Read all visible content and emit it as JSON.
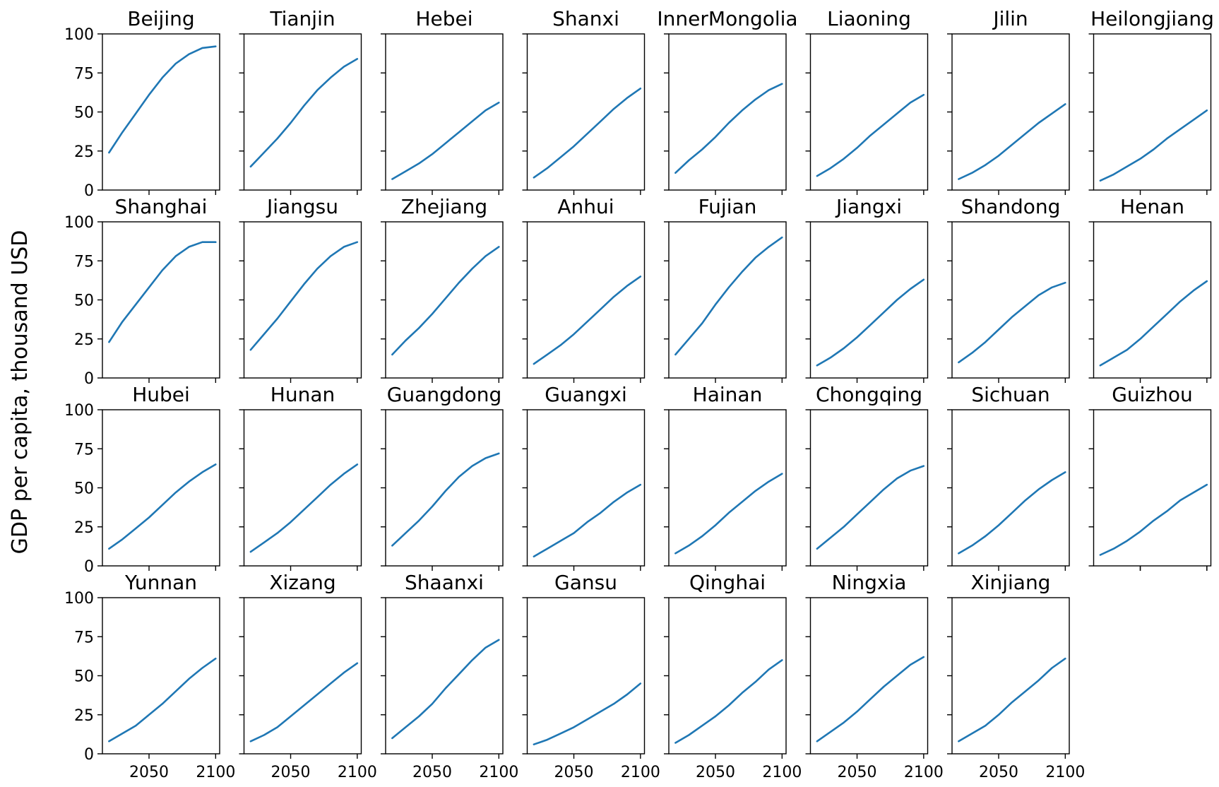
{
  "chart_data": {
    "type": "line",
    "ylabel": "GDP per capita, thousand USD",
    "xlabel": "",
    "xlim": [
      2015,
      2103
    ],
    "ylim": [
      0,
      100
    ],
    "xticks": [
      2050,
      2100
    ],
    "yticks": [
      0,
      25,
      50,
      75,
      100
    ],
    "grid": false,
    "layout": "4 rows x 8 columns small multiples, shared axes",
    "line_color": "#1f77b4",
    "x": [
      2020,
      2030,
      2040,
      2050,
      2060,
      2070,
      2080,
      2090,
      2100
    ],
    "panels": [
      {
        "name": "Beijing",
        "values": [
          24,
          37,
          49,
          61,
          72,
          81,
          87,
          91,
          92
        ]
      },
      {
        "name": "Tianjin",
        "values": [
          15,
          24,
          33,
          43,
          54,
          64,
          72,
          79,
          84
        ]
      },
      {
        "name": "Hebei",
        "values": [
          7,
          12,
          17,
          23,
          30,
          37,
          44,
          51,
          56
        ]
      },
      {
        "name": "Shanxi",
        "values": [
          8,
          14,
          21,
          28,
          36,
          44,
          52,
          59,
          65
        ]
      },
      {
        "name": "InnerMongolia",
        "values": [
          11,
          19,
          26,
          34,
          43,
          51,
          58,
          64,
          68
        ]
      },
      {
        "name": "Liaoning",
        "values": [
          9,
          14,
          20,
          27,
          35,
          42,
          49,
          56,
          61
        ]
      },
      {
        "name": "Jilin",
        "values": [
          7,
          11,
          16,
          22,
          29,
          36,
          43,
          49,
          55
        ]
      },
      {
        "name": "Heilongjiang",
        "values": [
          6,
          10,
          15,
          20,
          26,
          33,
          39,
          45,
          51
        ]
      },
      {
        "name": "Shanghai",
        "values": [
          23,
          36,
          47,
          58,
          69,
          78,
          84,
          87,
          87
        ]
      },
      {
        "name": "Jiangsu",
        "values": [
          18,
          28,
          38,
          49,
          60,
          70,
          78,
          84,
          87
        ]
      },
      {
        "name": "Zhejiang",
        "values": [
          15,
          24,
          32,
          41,
          51,
          61,
          70,
          78,
          84
        ]
      },
      {
        "name": "Anhui",
        "values": [
          9,
          15,
          21,
          28,
          36,
          44,
          52,
          59,
          65
        ]
      },
      {
        "name": "Fujian",
        "values": [
          15,
          25,
          35,
          47,
          58,
          68,
          77,
          84,
          90
        ]
      },
      {
        "name": "Jiangxi",
        "values": [
          8,
          13,
          19,
          26,
          34,
          42,
          50,
          57,
          63
        ]
      },
      {
        "name": "Shandong",
        "values": [
          10,
          16,
          23,
          31,
          39,
          46,
          53,
          58,
          61
        ]
      },
      {
        "name": "Henan",
        "values": [
          8,
          13,
          18,
          25,
          33,
          41,
          49,
          56,
          62
        ]
      },
      {
        "name": "Hubei",
        "values": [
          11,
          17,
          24,
          31,
          39,
          47,
          54,
          60,
          65
        ]
      },
      {
        "name": "Hunan",
        "values": [
          9,
          15,
          21,
          28,
          36,
          44,
          52,
          59,
          65
        ]
      },
      {
        "name": "Guangdong",
        "values": [
          13,
          21,
          29,
          38,
          48,
          57,
          64,
          69,
          72
        ]
      },
      {
        "name": "Guangxi",
        "values": [
          6,
          11,
          16,
          21,
          28,
          34,
          41,
          47,
          52
        ]
      },
      {
        "name": "Hainan",
        "values": [
          8,
          13,
          19,
          26,
          34,
          41,
          48,
          54,
          59
        ]
      },
      {
        "name": "Chongqing",
        "values": [
          11,
          18,
          25,
          33,
          41,
          49,
          56,
          61,
          64
        ]
      },
      {
        "name": "Sichuan",
        "values": [
          8,
          13,
          19,
          26,
          34,
          42,
          49,
          55,
          60
        ]
      },
      {
        "name": "Guizhou",
        "values": [
          7,
          11,
          16,
          22,
          29,
          35,
          42,
          47,
          52
        ]
      },
      {
        "name": "Yunnan",
        "values": [
          8,
          13,
          18,
          25,
          32,
          40,
          48,
          55,
          61
        ]
      },
      {
        "name": "Xizang",
        "values": [
          8,
          12,
          17,
          24,
          31,
          38,
          45,
          52,
          58
        ]
      },
      {
        "name": "Shaanxi",
        "values": [
          10,
          17,
          24,
          32,
          42,
          51,
          60,
          68,
          73
        ]
      },
      {
        "name": "Gansu",
        "values": [
          6,
          9,
          13,
          17,
          22,
          27,
          32,
          38,
          45
        ]
      },
      {
        "name": "Qinghai",
        "values": [
          7,
          12,
          18,
          24,
          31,
          39,
          46,
          54,
          60
        ]
      },
      {
        "name": "Ningxia",
        "values": [
          8,
          14,
          20,
          27,
          35,
          43,
          50,
          57,
          62
        ]
      },
      {
        "name": "Xinjiang",
        "values": [
          8,
          13,
          18,
          25,
          33,
          40,
          47,
          55,
          61
        ]
      }
    ]
  }
}
